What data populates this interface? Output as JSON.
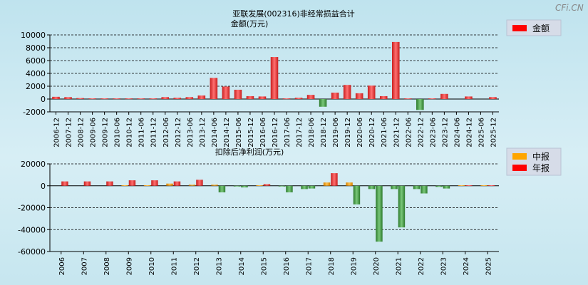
{
  "watermark": "CFi.CN",
  "chart_data": [
    {
      "type": "bar",
      "title": "亚联发展(002316)非经常损益合计",
      "subtitle": "金额(万元)",
      "legend": [
        {
          "name": "金额",
          "color": "#ff0000"
        }
      ],
      "ylim": [
        -2000,
        10000
      ],
      "yticks": [
        10000,
        8000,
        6000,
        4000,
        2000,
        0,
        -2000
      ],
      "categories": [
        "2006-12",
        "2007-12",
        "2008-12",
        "2009-06",
        "2009-12",
        "2010-06",
        "2010-12",
        "2011-06",
        "2011-12",
        "2012-06",
        "2012-12",
        "2013-06",
        "2013-12",
        "2014-06",
        "2014-12",
        "2015-06",
        "2015-12",
        "2016-06",
        "2016-12",
        "2017-06",
        "2017-12",
        "2018-06",
        "2018-12",
        "2019-06",
        "2019-12",
        "2020-06",
        "2020-12",
        "2021-06",
        "2021-12",
        "2022-06",
        "2022-12",
        "2023-06",
        "2023-12",
        "2024-06",
        "2024-12",
        "2025-06",
        "2025-12"
      ],
      "xlabels": [
        "2006-12",
        "2007-12",
        "2008-12",
        "2009-06",
        "2009-12",
        "2010-06",
        "2010-12",
        "2011-06",
        "2011-12",
        "2012-06",
        "2012-12",
        "2013-06",
        "2013-12",
        "2014-06",
        "2014-12",
        "2015-06",
        "2015-12",
        "2016-06",
        "2016-12",
        "2017-06",
        "2017-12",
        "2018-06",
        "2018-12",
        "2019-06",
        "2019-12",
        "2020-06",
        "2020-12",
        "2021-06",
        "2021-12",
        "2022-06",
        "2022-12",
        "2023-06",
        "2023-12",
        "2024-06",
        "2024-12",
        "2025-06",
        "2025-12"
      ],
      "values": [
        350,
        300,
        150,
        100,
        100,
        100,
        100,
        100,
        100,
        300,
        200,
        300,
        550,
        3300,
        1950,
        1450,
        450,
        400,
        6550,
        100,
        200,
        650,
        -1200,
        1000,
        2200,
        900,
        2100,
        450,
        8900,
        100,
        -1700,
        100,
        800,
        0,
        400,
        0,
        300
      ]
    },
    {
      "type": "bar",
      "title": "扣除后净利润(万元)",
      "legend": [
        {
          "name": "中报",
          "color": "#ffa500"
        },
        {
          "name": "年报",
          "color": "#ff0000"
        }
      ],
      "ylim": [
        -60000,
        20000
      ],
      "yticks": [
        20000,
        0,
        -20000,
        -40000,
        -60000
      ],
      "categories": [
        "2006",
        "2007",
        "2008",
        "2009",
        "2010",
        "2011",
        "2012",
        "2013",
        "2014",
        "2015",
        "2016",
        "2017",
        "2018",
        "2019",
        "2020",
        "2021",
        "2022",
        "2023",
        "2024",
        "2025"
      ],
      "series": [
        {
          "name": "中报",
          "values": [
            0,
            0,
            0,
            500,
            500,
            2000,
            1000,
            1000,
            -500,
            500,
            -500,
            -3000,
            3000,
            3000,
            -3000,
            -3000,
            -3000,
            -1000,
            500,
            500
          ]
        },
        {
          "name": "年报",
          "values": [
            4000,
            4000,
            4000,
            5000,
            5000,
            4000,
            5500,
            -6000,
            -1500,
            1500,
            -6000,
            -2500,
            11500,
            -17000,
            -51000,
            -38000,
            -7000,
            -2500,
            500,
            500
          ]
        }
      ]
    }
  ]
}
